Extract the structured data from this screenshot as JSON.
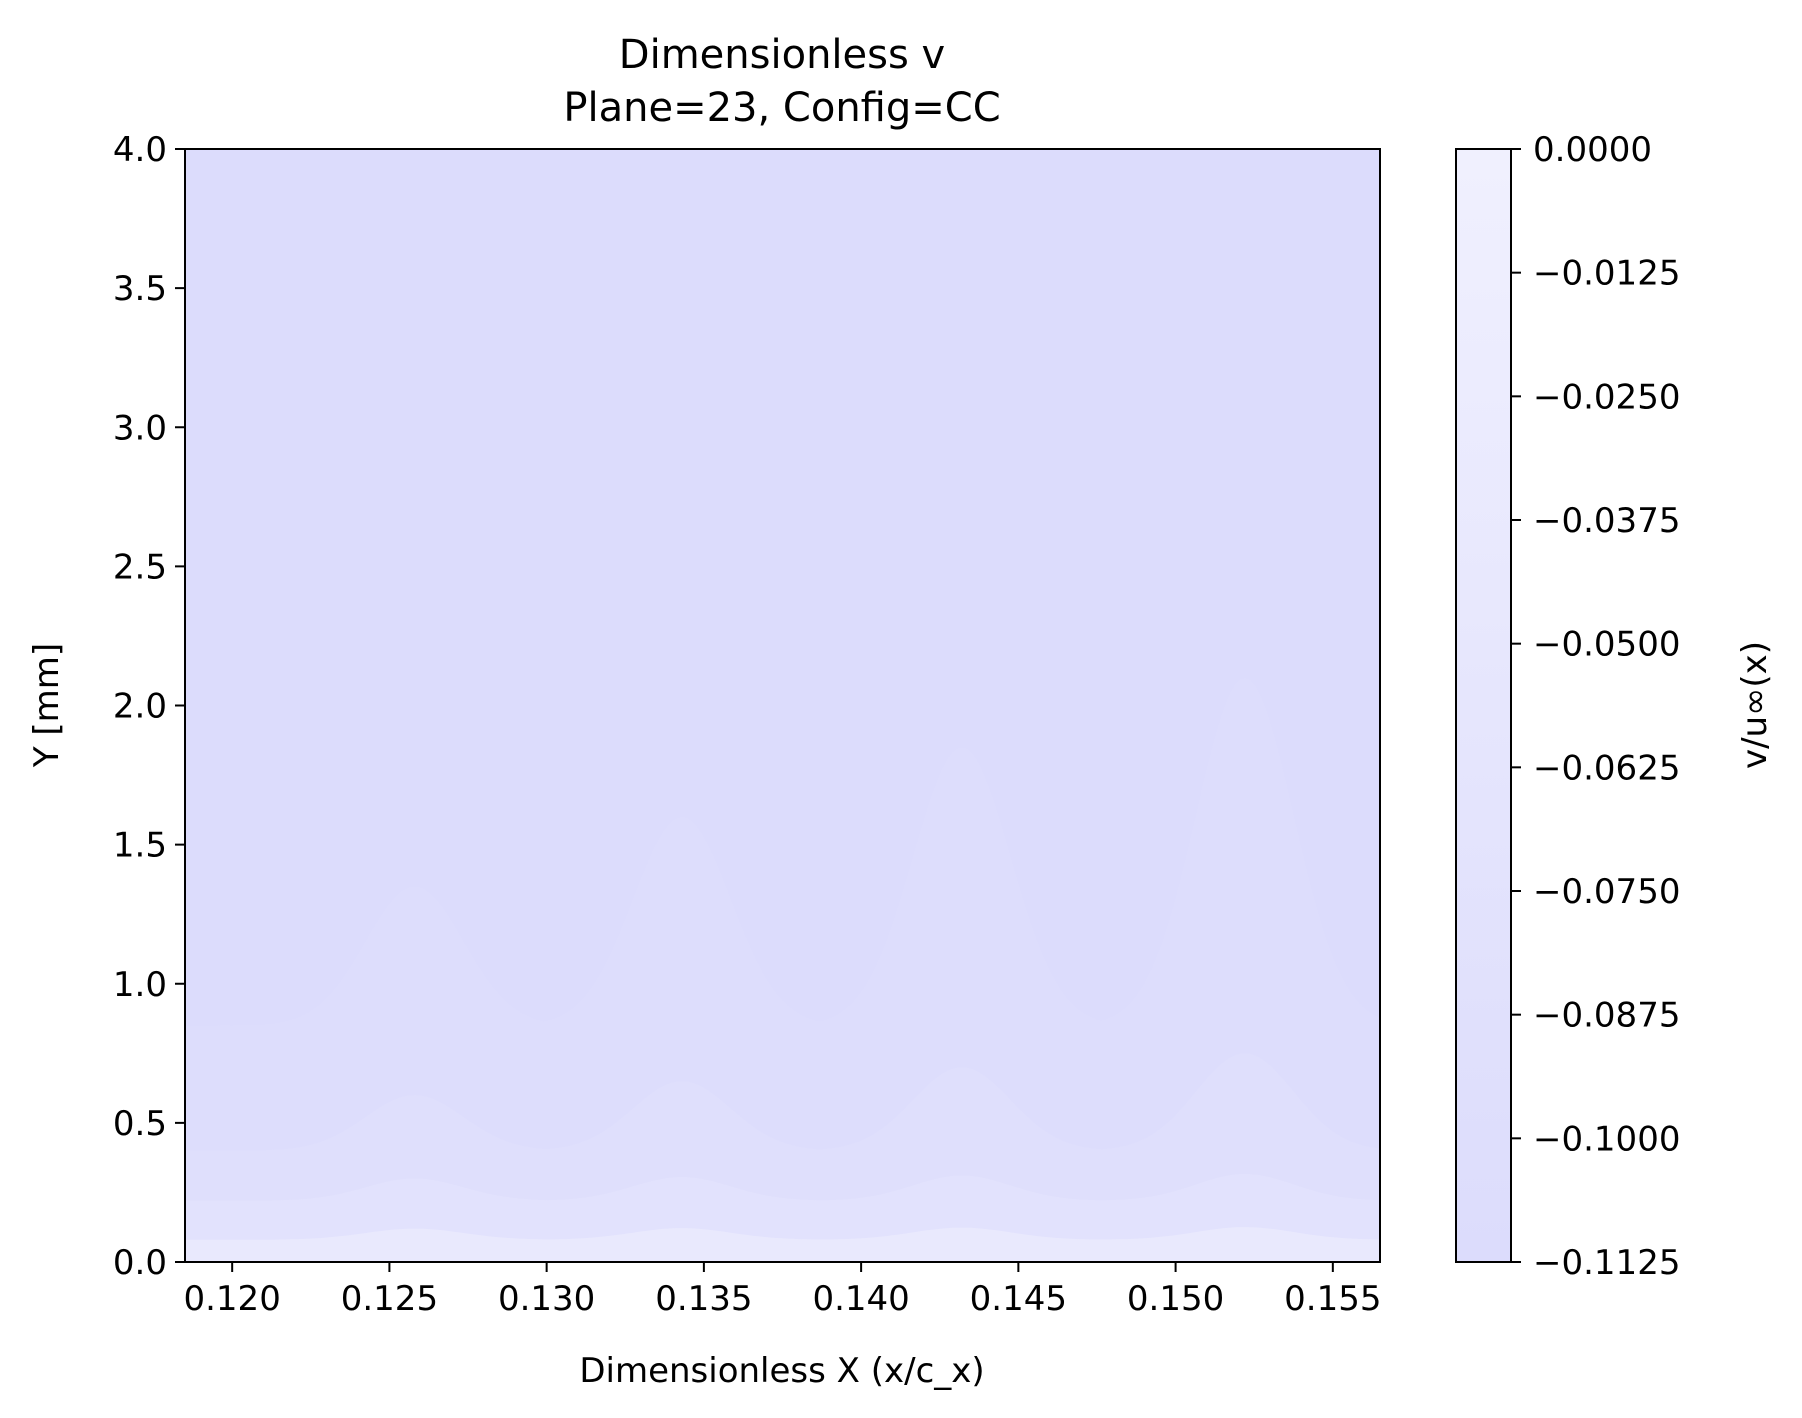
{
  "chart_data": {
    "type": "heatmap",
    "title": "Dimensionless v",
    "subtitle": "Plane=23, Config=CC",
    "xlabel": "Dimensionless X (x/c_x)",
    "ylabel": "Y [mm]",
    "colorbar_label": "v/u∞(x)",
    "xlim": [
      0.1185,
      0.1565
    ],
    "ylim": [
      0.0,
      4.0
    ],
    "xticks": [
      0.12,
      0.125,
      0.13,
      0.135,
      0.14,
      0.145,
      0.15,
      0.155
    ],
    "xtick_labels": [
      "0.120",
      "0.125",
      "0.130",
      "0.135",
      "0.140",
      "0.145",
      "0.150",
      "0.155"
    ],
    "yticks": [
      0.0,
      0.5,
      1.0,
      1.5,
      2.0,
      2.5,
      3.0,
      3.5,
      4.0
    ],
    "ytick_labels": [
      "0.0",
      "0.5",
      "1.0",
      "1.5",
      "2.0",
      "2.5",
      "3.0",
      "3.5",
      "4.0"
    ],
    "colorbar_range": [
      -0.1125,
      0.0
    ],
    "colorbar_ticks": [
      0.0,
      -0.0125,
      -0.025,
      -0.0375,
      -0.05,
      -0.0625,
      -0.075,
      -0.0875,
      -0.1,
      -0.1125
    ],
    "colorbar_tick_labels": [
      "0.0000",
      "−0.0125",
      "−0.0250",
      "−0.0375",
      "−0.0500",
      "−0.0625",
      "−0.0750",
      "−0.0875",
      "−0.1000",
      "−0.1125"
    ],
    "colormap": [
      "#dcdcfc",
      "#f0f0fe"
    ],
    "bump_peaks_x": [
      0.1258,
      0.1343,
      0.1432,
      0.1522
    ],
    "contour_levels": [
      {
        "level": -0.1125,
        "y_trough": 0.85,
        "y_peak": 1.35,
        "peak_growth": 0.22
      },
      {
        "level": -0.1,
        "y_trough": 0.4,
        "y_peak": 0.6,
        "peak_growth": 0.11
      },
      {
        "level": -0.0875,
        "y_trough": 0.22,
        "y_peak": 0.3,
        "peak_growth": 0.03
      },
      {
        "level": -0.075,
        "y_trough": 0.08,
        "y_peak": 0.12,
        "peak_growth": 0.02
      }
    ],
    "grid": false
  }
}
